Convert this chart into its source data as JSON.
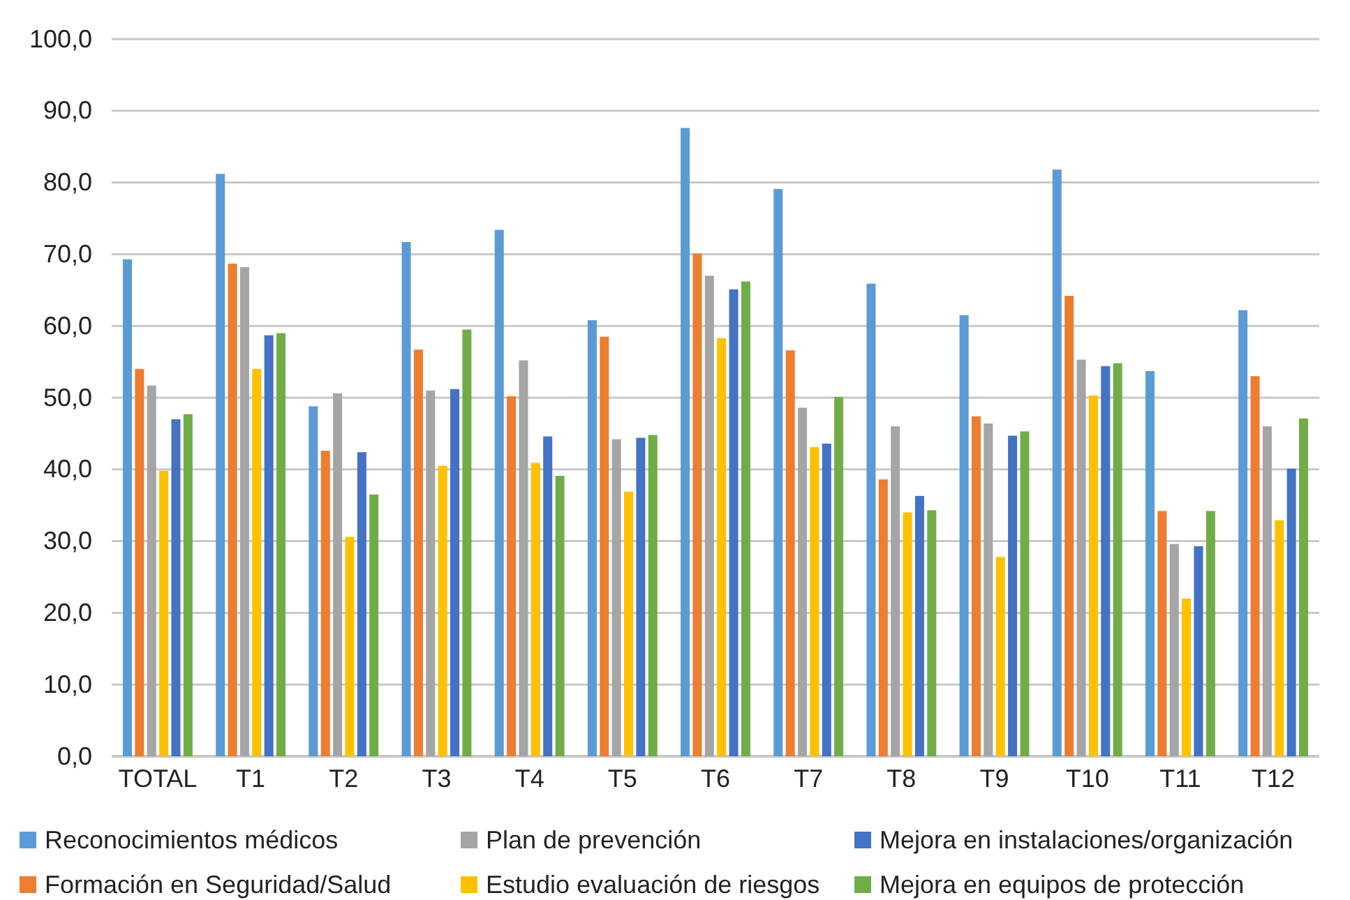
{
  "chart_data": {
    "type": "bar",
    "categories": [
      "TOTAL",
      "T1",
      "T2",
      "T3",
      "T4",
      "T5",
      "T6",
      "T7",
      "T8",
      "T9",
      "T10",
      "T11",
      "T12"
    ],
    "series": [
      {
        "name": "Reconocimientos médicos",
        "color": "#5b9bd5",
        "values": [
          69.3,
          81.2,
          48.8,
          71.7,
          73.4,
          60.8,
          87.6,
          79.1,
          65.9,
          61.5,
          81.8,
          53.7,
          62.2
        ]
      },
      {
        "name": "Formación en Seguridad/Salud",
        "color": "#ed7d31",
        "values": [
          54.0,
          68.7,
          42.6,
          56.7,
          50.2,
          58.5,
          70.1,
          56.6,
          38.6,
          47.4,
          64.2,
          34.2,
          53.0
        ]
      },
      {
        "name": "Plan de prevención",
        "color": "#a5a5a5",
        "values": [
          51.7,
          68.2,
          50.6,
          51.0,
          55.2,
          44.2,
          67.0,
          48.6,
          46.0,
          46.4,
          55.3,
          29.6,
          46.0
        ]
      },
      {
        "name": "Estudio evaluación de riesgos",
        "color": "#ffc000",
        "values": [
          39.8,
          54.0,
          30.6,
          40.5,
          40.9,
          36.9,
          58.3,
          43.1,
          34.0,
          27.8,
          50.3,
          22.0,
          32.9
        ]
      },
      {
        "name": "Mejora en instalaciones/organización",
        "color": "#4472c4",
        "values": [
          47.0,
          58.7,
          42.4,
          51.2,
          44.6,
          44.4,
          65.1,
          43.6,
          36.3,
          44.7,
          54.4,
          29.3,
          40.1
        ]
      },
      {
        "name": "Mejora en equipos de protección",
        "color": "#70ad47",
        "values": [
          47.7,
          59.0,
          36.5,
          59.5,
          39.1,
          44.8,
          66.2,
          50.1,
          34.3,
          45.3,
          54.8,
          34.2,
          47.1
        ]
      }
    ],
    "ylim": [
      0,
      100
    ],
    "yticks": [
      {
        "value": 0,
        "label": "0,0"
      },
      {
        "value": 10,
        "label": "10,0"
      },
      {
        "value": 20,
        "label": "20,0"
      },
      {
        "value": 30,
        "label": "30,0"
      },
      {
        "value": 40,
        "label": "40,0"
      },
      {
        "value": 50,
        "label": "50,0"
      },
      {
        "value": 60,
        "label": "60,0"
      },
      {
        "value": 70,
        "label": "70,0"
      },
      {
        "value": 80,
        "label": "80,0"
      },
      {
        "value": 90,
        "label": "90,0"
      },
      {
        "value": 100,
        "label": "100,0"
      }
    ],
    "grid": "y",
    "legend": "bottom"
  }
}
